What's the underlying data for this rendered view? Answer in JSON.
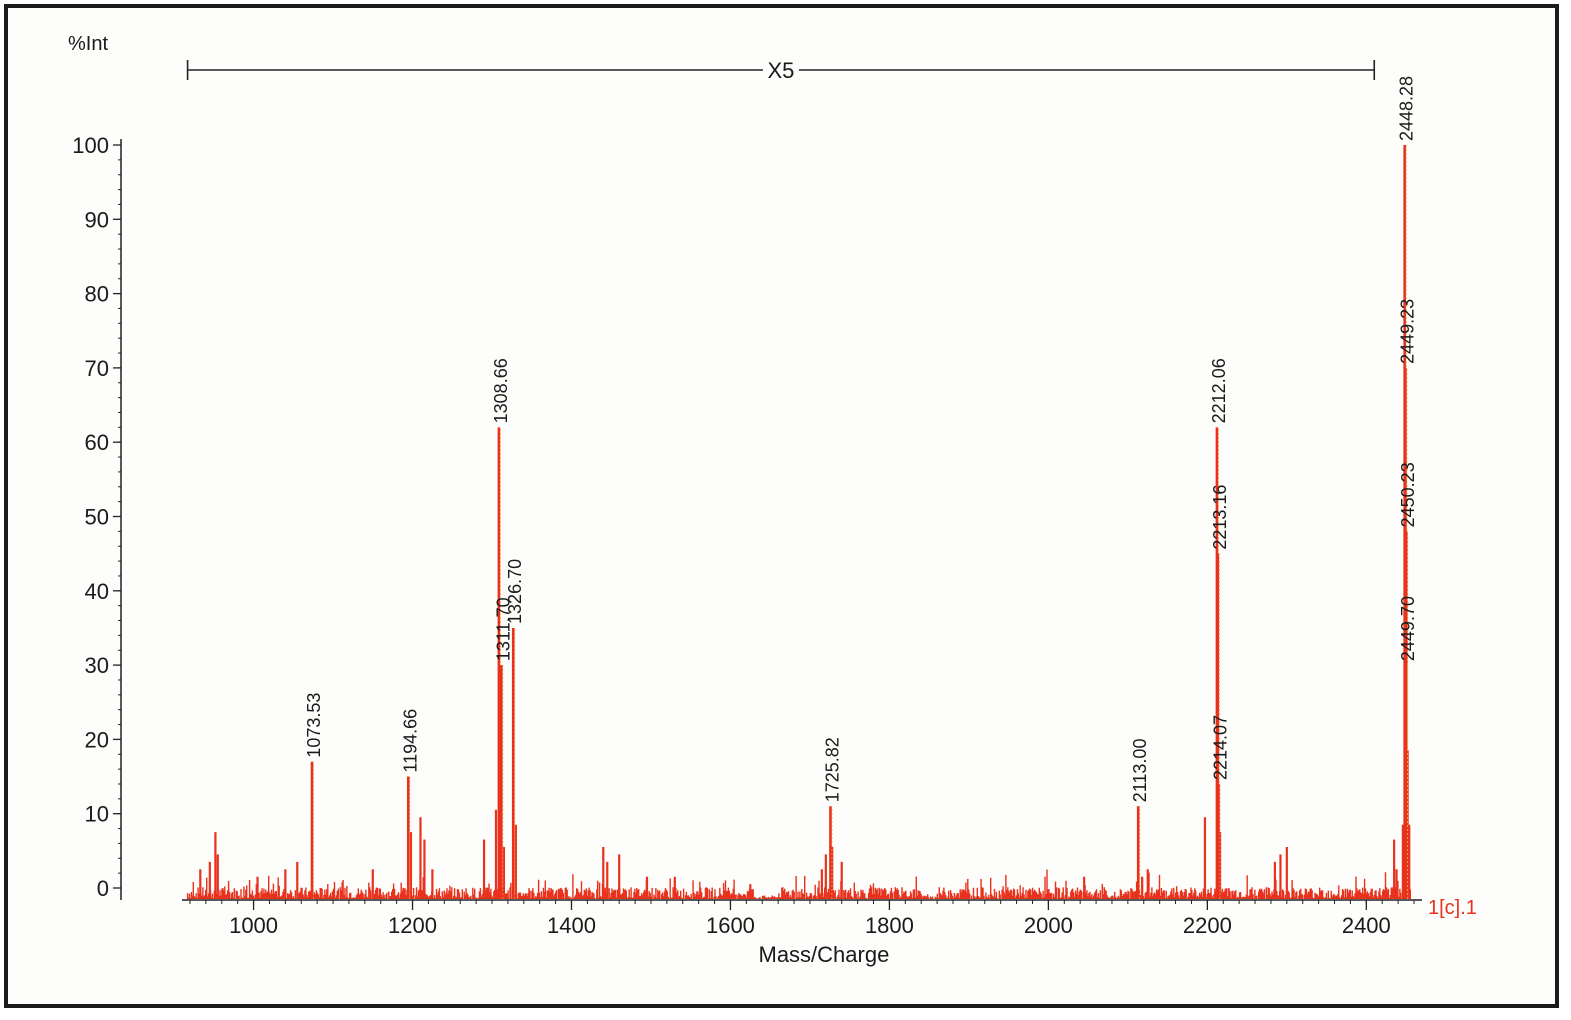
{
  "colors": {
    "spectrum": "#e8321e",
    "peak_outline": "#f29a3a",
    "axis": "#222222",
    "text": "#1a1a1a",
    "frame": "#1b1b1b",
    "background": "#fdfdfb"
  },
  "chart_data": {
    "type": "line",
    "xlabel": "Mass/Charge",
    "ylabel": "%Int",
    "xlim": [
      915,
      2460
    ],
    "ylim": [
      0,
      100
    ],
    "x_ticks": [
      1000,
      1200,
      1400,
      1600,
      1800,
      2000,
      2200,
      2400
    ],
    "y_ticks": [
      0,
      10,
      20,
      30,
      40,
      50,
      60,
      70,
      80,
      90,
      100
    ],
    "zoom_annotation": {
      "label": "X5",
      "x_range": [
        917,
        2410
      ]
    },
    "corner_label": "1[c].1",
    "labeled_peaks": [
      {
        "mz": 1073.53,
        "label": "1073.53",
        "intensity": 17
      },
      {
        "mz": 1194.66,
        "label": "1194.66",
        "intensity": 15
      },
      {
        "mz": 1308.66,
        "label": "1308.66",
        "intensity": 62
      },
      {
        "mz": 1311.7,
        "label": "1311.70",
        "intensity": 30
      },
      {
        "mz": 1326.7,
        "label": "1326.70",
        "intensity": 35
      },
      {
        "mz": 1725.82,
        "label": "1725.82",
        "intensity": 11
      },
      {
        "mz": 2113.0,
        "label": "2113.00",
        "intensity": 11
      },
      {
        "mz": 2212.06,
        "label": "2212.06",
        "intensity": 62
      },
      {
        "mz": 2213.16,
        "label": "2213.16",
        "intensity": 45
      },
      {
        "mz": 2214.07,
        "label": "2214.07",
        "intensity": 14
      },
      {
        "mz": 2448.28,
        "label": "2448.28",
        "intensity": 100
      },
      {
        "mz": 2449.23,
        "label": "2449.23",
        "intensity": 70
      },
      {
        "mz": 2450.23,
        "label": "2450.23",
        "intensity": 48
      },
      {
        "mz": 2449.7,
        "label": "2449.70",
        "intensity": 30
      }
    ],
    "minor_peaks": [
      [
        933,
        4
      ],
      [
        945,
        5
      ],
      [
        952,
        9
      ],
      [
        955,
        6
      ],
      [
        1005,
        3
      ],
      [
        1040,
        4
      ],
      [
        1055,
        5
      ],
      [
        1150,
        4
      ],
      [
        1198,
        9
      ],
      [
        1210,
        11
      ],
      [
        1215,
        8
      ],
      [
        1225,
        4
      ],
      [
        1290,
        8
      ],
      [
        1305,
        12
      ],
      [
        1315,
        7
      ],
      [
        1330,
        10
      ],
      [
        1440,
        7
      ],
      [
        1445,
        5
      ],
      [
        1460,
        6
      ],
      [
        1495,
        3
      ],
      [
        1530,
        3
      ],
      [
        1625,
        2
      ],
      [
        1715,
        4
      ],
      [
        1720,
        6
      ],
      [
        1728,
        7
      ],
      [
        1740,
        5
      ],
      [
        2045,
        3
      ],
      [
        2118,
        3
      ],
      [
        2125,
        4
      ],
      [
        2197,
        11
      ],
      [
        2216,
        9
      ],
      [
        2285,
        5
      ],
      [
        2292,
        6
      ],
      [
        2300,
        7
      ],
      [
        2435,
        8
      ],
      [
        2438,
        4
      ],
      [
        2446,
        10
      ],
      [
        2452,
        20
      ],
      [
        2454,
        10
      ]
    ]
  }
}
